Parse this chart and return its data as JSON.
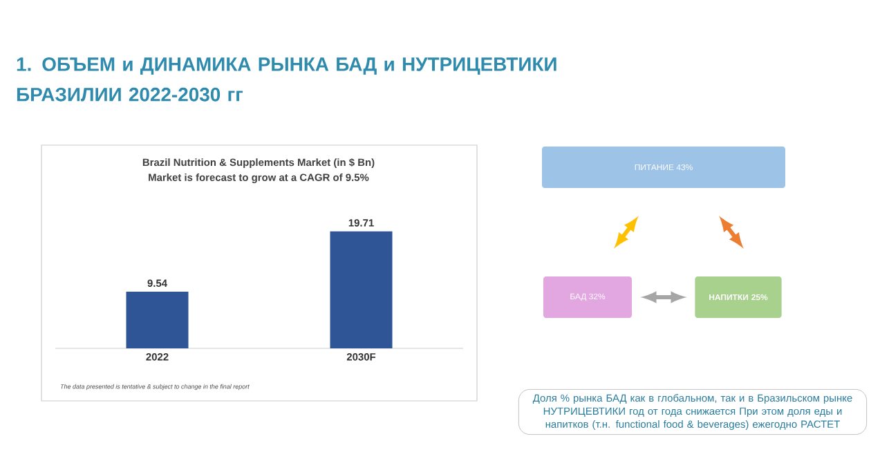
{
  "chart_data": {
    "type": "bar",
    "title": "1.  ОБЪЕМ  и ДИНАМИКА РЫНКА БАД и НУТРИЦЕВТИКИ БРАЗИЛИИ  2022-2030 гг",
    "subtitle": "Brazil Nutrition & Supplements Market (in $ Bn)",
    "categories": [
      "2022",
      "2030F"
    ],
    "values": [
      9.54,
      19.71
    ],
    "color": "#2f5597",
    "data_labels": true,
    "annotations": [
      "Market is forecast to grow at a CAGR of 9.5%",
      "The data presented is tentative & subject to change in the final report",
      "ПИТАНИЕ 43%",
      "БАД 32%",
      "НАПИТКИ 25%",
      "Доля % рынка БАД как в глобальном, так и в Бразильском  рынке НУТРИЦЕВТИКИ год от года снижается При этом доля еды и напитков (т.н. functional food & beverages)  ежегодно РАСТЕТ"
    ]
  }
}
